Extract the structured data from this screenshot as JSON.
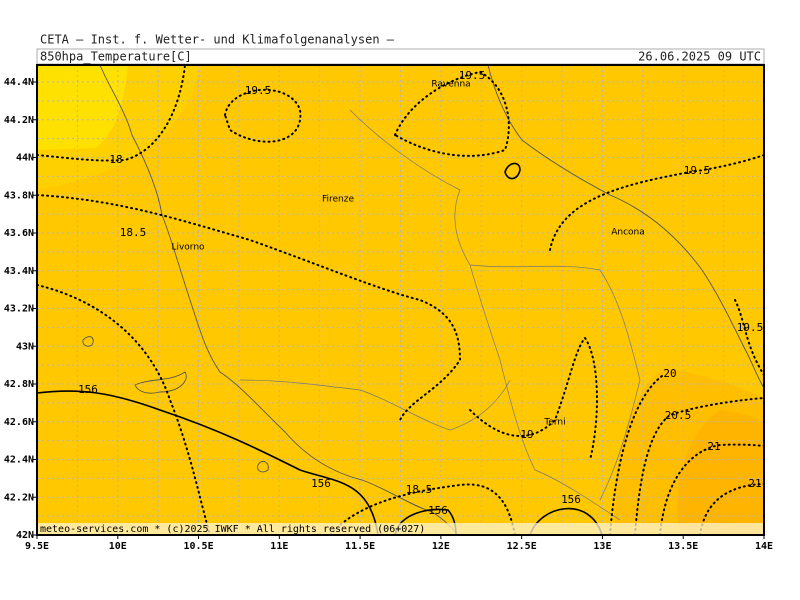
{
  "header": {
    "institute": "CETA — Inst. f. Wetter- und Klimafolgenanalysen —",
    "field": "850hpa_Temperature[C]",
    "valid_time": "26.06.2025 09 UTC"
  },
  "axes": {
    "lat": [
      {
        "value": 44.4,
        "label": "44.4N"
      },
      {
        "value": 44.2,
        "label": "44.2N"
      },
      {
        "value": 44,
        "label": "44N"
      },
      {
        "value": 43.8,
        "label": "43.8N"
      },
      {
        "value": 43.6,
        "label": "43.6N"
      },
      {
        "value": 43.4,
        "label": "43.4N"
      },
      {
        "value": 43.2,
        "label": "43.2N"
      },
      {
        "value": 43,
        "label": "43N"
      },
      {
        "value": 42.8,
        "label": "42.8N"
      },
      {
        "value": 42.6,
        "label": "42.6N"
      },
      {
        "value": 42.4,
        "label": "42.4N"
      },
      {
        "value": 42.2,
        "label": "42.2N"
      },
      {
        "value": 42,
        "label": "42N"
      }
    ],
    "lon": [
      {
        "value": 9.5,
        "label": "9.5E"
      },
      {
        "value": 10,
        "label": "10E"
      },
      {
        "value": 10.5,
        "label": "10.5E"
      },
      {
        "value": 11,
        "label": "11E"
      },
      {
        "value": 11.5,
        "label": "11.5E"
      },
      {
        "value": 12,
        "label": "12E"
      },
      {
        "value": 12.5,
        "label": "12.5E"
      },
      {
        "value": 13,
        "label": "13E"
      },
      {
        "value": 13.5,
        "label": "13.5E"
      },
      {
        "value": 14,
        "label": "14E"
      }
    ]
  },
  "cities": [
    "Ravenna",
    "Firenze",
    "Livorno",
    "Ancona",
    "Terni"
  ],
  "contour_labels": [
    "19.5",
    "19.5",
    "19.5",
    "19.5",
    "18",
    "18.5",
    "18.5",
    "20",
    "20.5",
    "21",
    "21",
    "19",
    "156",
    "156",
    "156",
    "156"
  ],
  "footer": "meteo-services.com * (c)2025 IWKF * All rights reserved (06+027)"
}
